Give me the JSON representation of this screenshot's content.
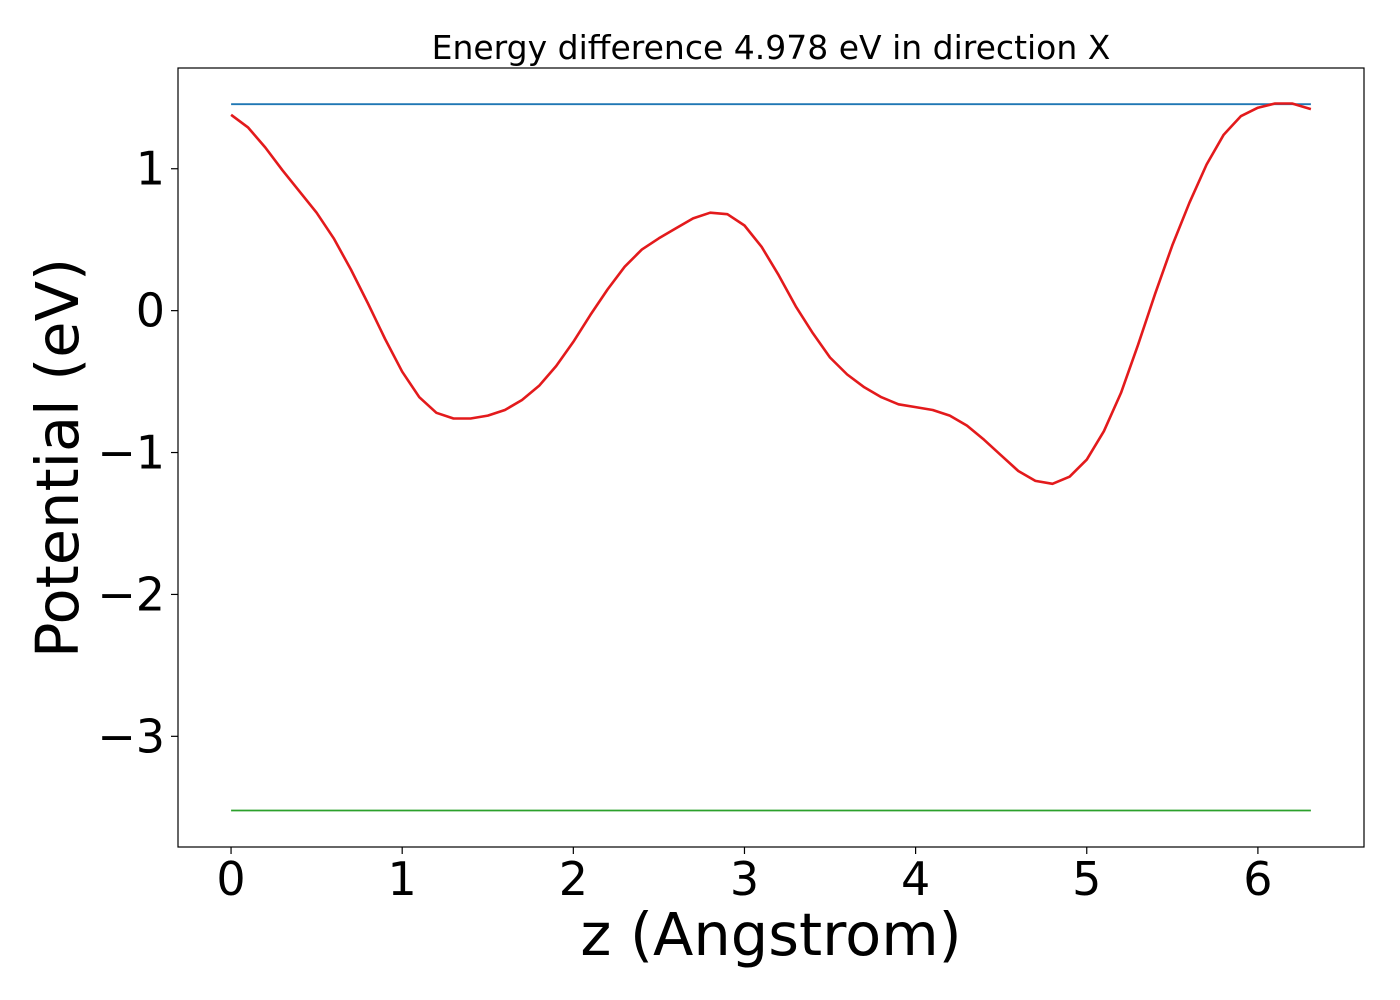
{
  "chart_data": {
    "type": "line",
    "title": "Energy difference 4.978 eV in direction X",
    "xlabel": "z (Angstrom)",
    "ylabel": "Potential (eV)",
    "xlim": [
      -0.31,
      6.62
    ],
    "ylim": [
      -3.78,
      1.71
    ],
    "xticks": [
      0,
      1,
      2,
      3,
      4,
      5,
      6
    ],
    "xtick_labels": [
      "0",
      "1",
      "2",
      "3",
      "4",
      "5",
      "6"
    ],
    "yticks": [
      1,
      0,
      -1,
      -2,
      -3
    ],
    "ytick_labels": [
      "1",
      "0",
      "−1",
      "−2",
      "−3"
    ],
    "grid": false,
    "legend": "none",
    "series": [
      {
        "color": "#1f77b4",
        "x": [
          0,
          6.31
        ],
        "y": [
          1.455,
          1.455
        ]
      },
      {
        "color": "#2ca02c",
        "x": [
          0,
          6.31
        ],
        "y": [
          -3.523,
          -3.523
        ]
      },
      {
        "color": "#e31a1c",
        "x": [
          0.0,
          0.1,
          0.2,
          0.3,
          0.4,
          0.5,
          0.6,
          0.7,
          0.8,
          0.9,
          1.0,
          1.1,
          1.2,
          1.3,
          1.4,
          1.5,
          1.6,
          1.7,
          1.8,
          1.9,
          2.0,
          2.1,
          2.2,
          2.3,
          2.4,
          2.5,
          2.6,
          2.7,
          2.8,
          2.9,
          3.0,
          3.1,
          3.2,
          3.3,
          3.4,
          3.5,
          3.6,
          3.7,
          3.8,
          3.9,
          4.0,
          4.1,
          4.2,
          4.3,
          4.4,
          4.5,
          4.6,
          4.7,
          4.8,
          4.9,
          5.0,
          5.1,
          5.2,
          5.3,
          5.4,
          5.5,
          5.6,
          5.7,
          5.8,
          5.9,
          6.0,
          6.1,
          6.2,
          6.31
        ],
        "y": [
          1.38,
          1.29,
          1.15,
          0.99,
          0.84,
          0.69,
          0.51,
          0.29,
          0.05,
          -0.2,
          -0.43,
          -0.61,
          -0.72,
          -0.76,
          -0.76,
          -0.74,
          -0.7,
          -0.63,
          -0.53,
          -0.39,
          -0.22,
          -0.03,
          0.15,
          0.31,
          0.43,
          0.51,
          0.58,
          0.65,
          0.69,
          0.68,
          0.6,
          0.45,
          0.25,
          0.03,
          -0.16,
          -0.33,
          -0.45,
          -0.54,
          -0.61,
          -0.66,
          -0.68,
          -0.7,
          -0.74,
          -0.81,
          -0.91,
          -1.02,
          -1.13,
          -1.2,
          -1.22,
          -1.17,
          -1.05,
          -0.85,
          -0.58,
          -0.24,
          0.12,
          0.46,
          0.76,
          1.03,
          1.24,
          1.37,
          1.43,
          1.46,
          1.46,
          1.42
        ]
      }
    ]
  }
}
